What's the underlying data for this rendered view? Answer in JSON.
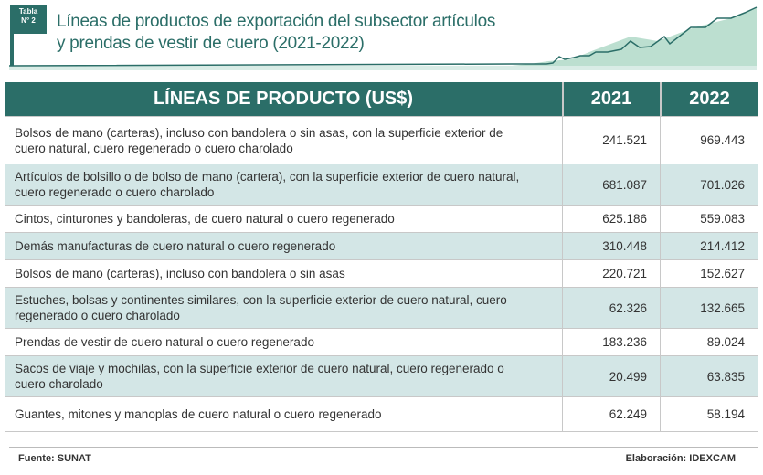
{
  "badge": {
    "line1": "Tabla",
    "line2": "N° 2"
  },
  "title": {
    "line1": "Líneas de productos  de exportación del subsector artículos",
    "line2": "y prendas de vestir  de cuero (2021-2022)"
  },
  "table": {
    "headers": [
      "LÍNEAS DE PRODUCTO (US$)",
      "2021",
      "2022"
    ],
    "rows": [
      {
        "product": "Bolsos de mano (carteras), incluso con bandolera o sin asas, con la superficie exterior de cuero natural, cuero regenerado o cuero charolado",
        "y2021": "241.521",
        "y2022": "969.443"
      },
      {
        "product": "Artículos de bolsillo o de bolso de mano (cartera), con la superficie exterior de cuero natural, cuero regenerado o cuero charolado",
        "y2021": "681.087",
        "y2022": "701.026"
      },
      {
        "product": "Cintos, cinturones y bandoleras, de cuero natural o cuero regenerado",
        "y2021": "625.186",
        "y2022": "559.083"
      },
      {
        "product": "Demás manufacturas de cuero natural o cuero regenerado",
        "y2021": "310.448",
        "y2022": "214.412"
      },
      {
        "product": "Bolsos de mano (carteras), incluso con bandolera o sin asas",
        "y2021": "220.721",
        "y2022": "152.627"
      },
      {
        "product": "Estuches, bolsas y continentes similares, con la superficie exterior de cuero natural, cuero regenerado o cuero charolado",
        "y2021": "62.326",
        "y2022": "132.665"
      },
      {
        "product": "Prendas de vestir de cuero natural o cuero regenerado",
        "y2021": "183.236",
        "y2022": "89.024"
      },
      {
        "product": "Sacos de viaje y mochilas, con la superficie exterior de cuero natural, cuero regenerado o cuero charolado",
        "y2021": "20.499",
        "y2022": "63.835"
      },
      {
        "product": "Guantes, mitones y manoplas de cuero natural o cuero regenerado",
        "y2021": "62.249",
        "y2022": "58.194"
      }
    ]
  },
  "footer": {
    "source": "Fuente: SUNAT",
    "credit": "Elaboración: IDEXCAM"
  },
  "colors": {
    "accent": "#2b6e68",
    "row_alt": "#d3e6e6"
  }
}
